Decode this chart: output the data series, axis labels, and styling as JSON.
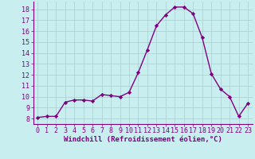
{
  "x": [
    0,
    1,
    2,
    3,
    4,
    5,
    6,
    7,
    8,
    9,
    10,
    11,
    12,
    13,
    14,
    15,
    16,
    17,
    18,
    19,
    20,
    21,
    22,
    23
  ],
  "y": [
    8.1,
    8.2,
    8.2,
    9.5,
    9.7,
    9.7,
    9.6,
    10.2,
    10.1,
    10.0,
    10.4,
    12.2,
    14.3,
    16.5,
    17.5,
    18.2,
    18.2,
    17.6,
    15.4,
    12.1,
    10.7,
    10.0,
    8.2,
    9.4
  ],
  "line_color": "#800080",
  "marker": "D",
  "marker_size": 2.2,
  "bg_color": "#c8eef0",
  "grid_color": "#aacccc",
  "xlabel": "Windchill (Refroidissement éolien,°C)",
  "xlim": [
    -0.5,
    23.5
  ],
  "ylim": [
    7.5,
    18.7
  ],
  "yticks": [
    8,
    9,
    10,
    11,
    12,
    13,
    14,
    15,
    16,
    17,
    18
  ],
  "xticks": [
    0,
    1,
    2,
    3,
    4,
    5,
    6,
    7,
    8,
    9,
    10,
    11,
    12,
    13,
    14,
    15,
    16,
    17,
    18,
    19,
    20,
    21,
    22,
    23
  ],
  "tick_color": "#800080",
  "label_fontsize": 6.5,
  "tick_fontsize": 6.0,
  "linewidth": 1.0
}
